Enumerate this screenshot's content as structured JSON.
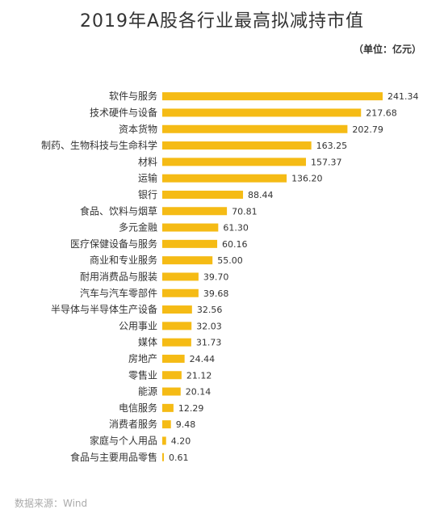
{
  "title": "2019年A股各行业最高拟减持市值",
  "unit": "（单位：亿元）",
  "source": "数据来源：Wind",
  "colors": {
    "bar": "#f5bb15",
    "label": "#333333",
    "value": "#333333"
  },
  "chart_data": {
    "type": "bar",
    "orientation": "horizontal",
    "title": "2019年A股各行业最高拟减持市值",
    "categories": [
      "软件与服务",
      "技术硬件与设备",
      "资本货物",
      "制药、生物科技与生命科学",
      "材料",
      "运输",
      "银行",
      "食品、饮料与烟草",
      "多元金融",
      "医疗保健设备与服务",
      "商业和专业服务",
      "耐用消费品与服装",
      "汽车与汽车零部件",
      "半导体与半导体生产设备",
      "公用事业",
      "媒体",
      "房地产",
      "零售业",
      "能源",
      "电信服务",
      "消费者服务",
      "家庭与个人用品",
      "食品与主要用品零售"
    ],
    "values": [
      241.34,
      217.68,
      202.79,
      163.25,
      157.37,
      136.2,
      88.44,
      70.81,
      61.3,
      60.16,
      55.0,
      39.7,
      39.68,
      32.56,
      32.03,
      31.73,
      24.44,
      21.12,
      20.14,
      12.29,
      9.48,
      4.2,
      0.61
    ],
    "value_labels": [
      "241.34",
      "217.68",
      "202.79",
      "163.25",
      "157.37",
      "136.20",
      "88.44",
      "70.81",
      "61.30",
      "60.16",
      "55.00",
      "39.70",
      "39.68",
      "32.56",
      "32.03",
      "31.73",
      "24.44",
      "21.12",
      "20.14",
      "12.29",
      "9.48",
      "4.20",
      "0.61"
    ],
    "xlim": [
      0,
      241.34
    ],
    "grid": false,
    "legend": "none"
  }
}
